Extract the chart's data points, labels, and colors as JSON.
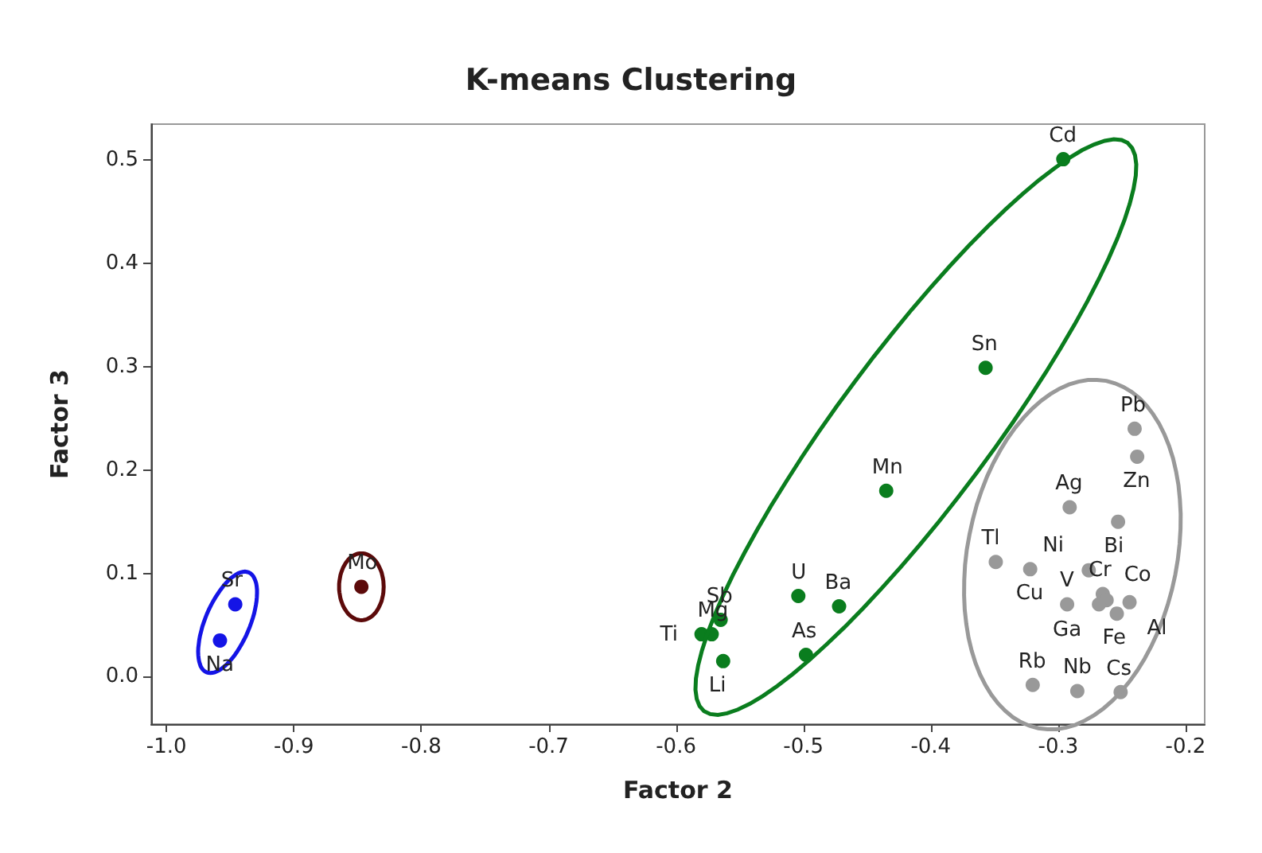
{
  "chart_data": {
    "type": "scatter",
    "title": "K-means Clustering",
    "xlabel": "Factor 2",
    "ylabel": "Factor 3",
    "xlim": [
      -1.012,
      -0.185
    ],
    "ylim": [
      -0.046,
      0.535
    ],
    "xticks": [
      {
        "value": -1.0,
        "label": "-1.0"
      },
      -0.9,
      -0.8,
      -0.7,
      -0.6,
      -0.5,
      -0.4,
      -0.3,
      -0.2
    ],
    "yticks": [
      {
        "value": 0.0,
        "label": "0.0"
      },
      0.1,
      0.2,
      0.3,
      0.4,
      0.5
    ],
    "grid": false,
    "marker": "circle",
    "series": [
      {
        "color": "#1414e6",
        "x": [
          -0.946,
          -0.958
        ],
        "values": [
          0.07,
          0.035
        ]
      },
      {
        "color": "#5c0a0a",
        "x": [
          -0.847
        ],
        "values": [
          0.087
        ]
      },
      {
        "color": "#0a7d1e",
        "x": [
          -0.296,
          -0.357,
          -0.435,
          -0.504,
          -0.472,
          -0.498,
          -0.565,
          -0.58,
          -0.572,
          -0.563
        ],
        "values": [
          0.501,
          0.299,
          0.18,
          0.078,
          0.068,
          0.021,
          0.055,
          0.041,
          0.041,
          0.015
        ]
      },
      {
        "color": "#999999",
        "x": [
          -0.24,
          -0.238,
          -0.291,
          -0.253,
          -0.349,
          -0.322,
          -0.276,
          -0.293,
          -0.265,
          -0.262,
          -0.268,
          -0.244,
          -0.254,
          -0.32,
          -0.285,
          -0.251
        ],
        "values": [
          0.24,
          0.213,
          0.164,
          0.15,
          0.111,
          0.104,
          0.103,
          0.07,
          0.08,
          0.074,
          0.07,
          0.072,
          0.061,
          -0.008,
          -0.014,
          -0.015
        ]
      }
    ],
    "annotations": [
      {
        "text": "Sr",
        "x": -0.946,
        "y": 0.07
      },
      {
        "text": "Na",
        "x": -0.958,
        "y": 0.035
      },
      {
        "text": "Mo",
        "x": -0.847,
        "y": 0.087
      },
      {
        "text": "Cd",
        "x": -0.296,
        "y": 0.501
      },
      {
        "text": "Sn",
        "x": -0.357,
        "y": 0.299
      },
      {
        "text": "Mn",
        "x": -0.435,
        "y": 0.18
      },
      {
        "text": "U",
        "x": -0.504,
        "y": 0.078
      },
      {
        "text": "Ba",
        "x": -0.472,
        "y": 0.068
      },
      {
        "text": "As",
        "x": -0.498,
        "y": 0.021
      },
      {
        "text": "Sb",
        "x": -0.565,
        "y": 0.055
      },
      {
        "text": "Ti",
        "x": -0.58,
        "y": 0.041
      },
      {
        "text": "Mg",
        "x": -0.572,
        "y": 0.041
      },
      {
        "text": "Li",
        "x": -0.563,
        "y": 0.015
      },
      {
        "text": "Pb",
        "x": -0.24,
        "y": 0.24
      },
      {
        "text": "Zn",
        "x": -0.238,
        "y": 0.213
      },
      {
        "text": "Ag",
        "x": -0.291,
        "y": 0.164
      },
      {
        "text": "Bi",
        "x": -0.253,
        "y": 0.15
      },
      {
        "text": "Tl",
        "x": -0.349,
        "y": 0.111
      },
      {
        "text": "Cu",
        "x": -0.322,
        "y": 0.104
      },
      {
        "text": "Ni",
        "x": -0.276,
        "y": 0.103
      },
      {
        "text": "V",
        "x": -0.293,
        "y": 0.07
      },
      {
        "text": "Cr",
        "x": -0.265,
        "y": 0.08
      },
      {
        "text": "Co",
        "x": -0.262,
        "y": 0.074
      },
      {
        "text": "Ga",
        "x": -0.268,
        "y": 0.07
      },
      {
        "text": "Al",
        "x": -0.244,
        "y": 0.072
      },
      {
        "text": "Fe",
        "x": -0.254,
        "y": 0.061
      },
      {
        "text": "Rb",
        "x": -0.32,
        "y": -0.008
      },
      {
        "text": "Nb",
        "x": -0.285,
        "y": -0.014
      },
      {
        "text": "Cs",
        "x": -0.251,
        "y": -0.015
      }
    ]
  }
}
